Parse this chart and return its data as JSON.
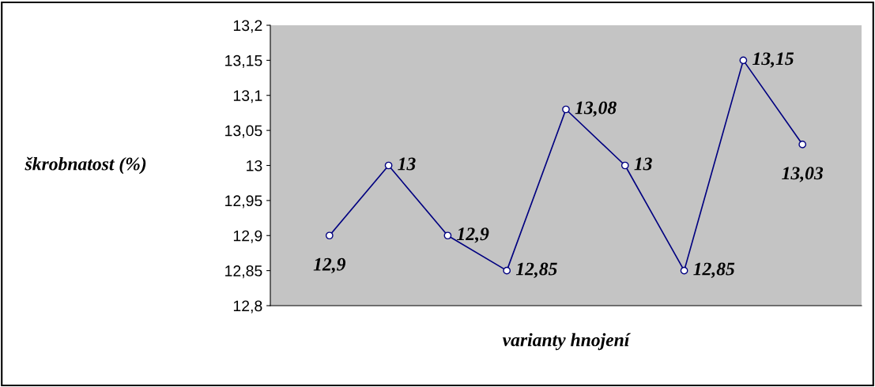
{
  "chart_data": {
    "type": "line",
    "xlabel": "varianty hnojení",
    "ylabel": "škrobnatost (%)",
    "categories": [
      null,
      null,
      null,
      null,
      null,
      null,
      null,
      null,
      null
    ],
    "series": [
      {
        "color": "#000080",
        "values": [
          12.9,
          13,
          12.9,
          12.85,
          13.08,
          13,
          12.85,
          13.15,
          13.03
        ],
        "value_labels": [
          "12,9",
          "13",
          "12,9",
          "12,85",
          "13,08",
          "13",
          "12,85",
          "13,15",
          "13,03"
        ]
      }
    ],
    "ylim": [
      12.8,
      13.2
    ],
    "yticks": [
      {
        "value": 12.8,
        "label": "12,8"
      },
      {
        "value": 12.85,
        "label": "12,85"
      },
      {
        "value": 12.9,
        "label": "12,9"
      },
      {
        "value": 12.95,
        "label": "12,95"
      },
      {
        "value": 13,
        "label": "13"
      },
      {
        "value": 13.05,
        "label": "13,05"
      },
      {
        "value": 13.1,
        "label": "13,1"
      },
      {
        "value": 13.15,
        "label": "13,15"
      },
      {
        "value": 13.2,
        "label": "13,2"
      }
    ],
    "grid": false,
    "marker": "circle",
    "line_style": "solid",
    "tick_labels": "y"
  }
}
